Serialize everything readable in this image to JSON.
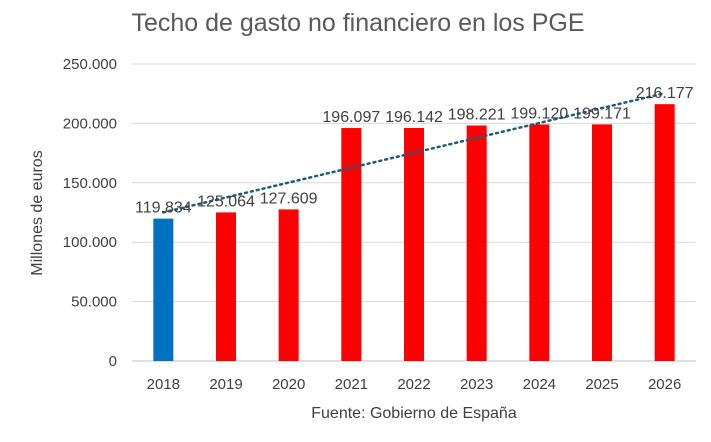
{
  "chart_data": {
    "type": "bar",
    "title": "Techo de gasto no financiero en los PGE",
    "xlabel": "Fuente: Gobierno de España",
    "ylabel": "Millones de euros",
    "categories": [
      "2018",
      "2019",
      "2020",
      "2021",
      "2022",
      "2023",
      "2024",
      "2025",
      "2026"
    ],
    "values": [
      119834,
      125064,
      127609,
      196097,
      196142,
      198221,
      199120,
      199171,
      216177
    ],
    "value_labels": [
      "119.834",
      "125.064",
      "127.609",
      "196.097",
      "196.142",
      "198.221",
      "199.120",
      "199.171",
      "216.177"
    ],
    "bar_colors": [
      "#0070C0",
      "#FF0000",
      "#FF0000",
      "#FF0000",
      "#FF0000",
      "#FF0000",
      "#FF0000",
      "#FF0000",
      "#FF0000"
    ],
    "ylim": [
      0,
      250000
    ],
    "yticks": [
      0,
      50000,
      100000,
      150000,
      200000,
      250000
    ],
    "ytick_labels": [
      "0",
      "50.000",
      "100.000",
      "150.000",
      "200.000",
      "250.000"
    ],
    "trendline": {
      "type": "linear",
      "style": "dotted",
      "color": "#1F5C7A"
    },
    "grid": "horizontal",
    "legend": "none"
  }
}
